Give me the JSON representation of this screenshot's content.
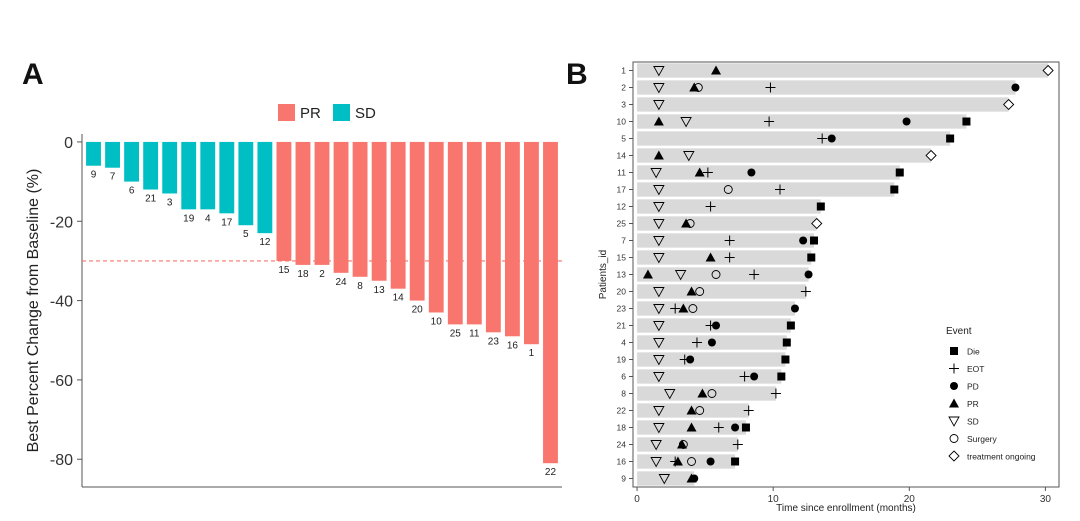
{
  "panels": {
    "a": "A",
    "b": "B"
  },
  "chart_data": [
    {
      "type": "bar",
      "title": "",
      "xlabel": "",
      "ylabel": "Best Percent Change from Baseline (%)",
      "ylim": [
        -87,
        2
      ],
      "yticks": [
        0,
        -20,
        -40,
        -60,
        -80
      ],
      "ytick_labels": [
        "0",
        "-20",
        "-40",
        "-60",
        "-80"
      ],
      "reference_line": -30,
      "legend": [
        {
          "label": "PR",
          "color": "#F8766D"
        },
        {
          "label": "SD",
          "color": "#00BFC4"
        }
      ],
      "colors": {
        "PR": "#F8766D",
        "SD": "#00BFC4"
      },
      "bars": [
        {
          "patient": "9",
          "value": -6,
          "response": "SD"
        },
        {
          "patient": "7",
          "value": -6.5,
          "response": "SD"
        },
        {
          "patient": "6",
          "value": -10,
          "response": "SD"
        },
        {
          "patient": "21",
          "value": -12,
          "response": "SD"
        },
        {
          "patient": "3",
          "value": -13,
          "response": "SD"
        },
        {
          "patient": "19",
          "value": -17,
          "response": "SD"
        },
        {
          "patient": "4",
          "value": -17,
          "response": "SD"
        },
        {
          "patient": "17",
          "value": -18,
          "response": "SD"
        },
        {
          "patient": "5",
          "value": -21,
          "response": "SD"
        },
        {
          "patient": "12",
          "value": -23,
          "response": "SD"
        },
        {
          "patient": "15",
          "value": -30,
          "response": "PR"
        },
        {
          "patient": "18",
          "value": -31,
          "response": "PR"
        },
        {
          "patient": "2",
          "value": -31,
          "response": "PR"
        },
        {
          "patient": "24",
          "value": -33,
          "response": "PR"
        },
        {
          "patient": "8",
          "value": -34,
          "response": "PR"
        },
        {
          "patient": "13",
          "value": -35,
          "response": "PR"
        },
        {
          "patient": "14",
          "value": -37,
          "response": "PR"
        },
        {
          "patient": "20",
          "value": -40,
          "response": "PR"
        },
        {
          "patient": "10",
          "value": -43,
          "response": "PR"
        },
        {
          "patient": "25",
          "value": -46,
          "response": "PR"
        },
        {
          "patient": "11",
          "value": -46,
          "response": "PR"
        },
        {
          "patient": "23",
          "value": -48,
          "response": "PR"
        },
        {
          "patient": "16",
          "value": -49,
          "response": "PR"
        },
        {
          "patient": "1",
          "value": -51,
          "response": "PR"
        },
        {
          "patient": "22",
          "value": -81,
          "response": "PR"
        }
      ]
    },
    {
      "type": "swimmer",
      "title": "",
      "xlabel": "Time since enrollment (months)",
      "ylabel": "Patients_id",
      "xlim": [
        -0.3,
        31
      ],
      "xticks": [
        0,
        10,
        20,
        30
      ],
      "xtick_labels": [
        "0",
        "10",
        "20",
        "30"
      ],
      "legend_title": "Event",
      "legend": [
        {
          "label": "Die",
          "marker": "square"
        },
        {
          "label": "EOT",
          "marker": "plus"
        },
        {
          "label": "PD",
          "marker": "circle"
        },
        {
          "label": "PR",
          "marker": "triangle"
        },
        {
          "label": "SD",
          "marker": "triangle-down"
        },
        {
          "label": "Surgery",
          "marker": "circle-open"
        },
        {
          "label": "treatment ongoing",
          "marker": "diamond-open"
        }
      ],
      "rows": [
        {
          "id": "1",
          "duration": 30.2,
          "events": [
            {
              "t": 1.6,
              "e": "SD"
            },
            {
              "t": 5.8,
              "e": "PR"
            },
            {
              "t": 30.2,
              "e": "treatment ongoing"
            }
          ]
        },
        {
          "id": "2",
          "duration": 27.8,
          "events": [
            {
              "t": 1.6,
              "e": "SD"
            },
            {
              "t": 4.2,
              "e": "PR"
            },
            {
              "t": 4.5,
              "e": "Surgery"
            },
            {
              "t": 9.8,
              "e": "EOT"
            },
            {
              "t": 27.8,
              "e": "PD"
            }
          ]
        },
        {
          "id": "3",
          "duration": 27.3,
          "events": [
            {
              "t": 1.6,
              "e": "SD"
            },
            {
              "t": 27.3,
              "e": "treatment ongoing"
            }
          ]
        },
        {
          "id": "10",
          "duration": 24.2,
          "events": [
            {
              "t": 1.6,
              "e": "PR"
            },
            {
              "t": 3.6,
              "e": "SD"
            },
            {
              "t": 9.7,
              "e": "EOT"
            },
            {
              "t": 19.8,
              "e": "PD"
            },
            {
              "t": 24.2,
              "e": "Die"
            }
          ]
        },
        {
          "id": "5",
          "duration": 23.0,
          "events": [
            {
              "t": 13.6,
              "e": "EOT"
            },
            {
              "t": 14.3,
              "e": "PD"
            },
            {
              "t": 23.0,
              "e": "Die"
            }
          ]
        },
        {
          "id": "14",
          "duration": 21.6,
          "events": [
            {
              "t": 1.6,
              "e": "PR"
            },
            {
              "t": 3.8,
              "e": "SD"
            },
            {
              "t": 21.6,
              "e": "treatment ongoing"
            }
          ]
        },
        {
          "id": "11",
          "duration": 19.3,
          "events": [
            {
              "t": 1.4,
              "e": "SD"
            },
            {
              "t": 4.6,
              "e": "PR"
            },
            {
              "t": 5.2,
              "e": "EOT"
            },
            {
              "t": 8.4,
              "e": "PD"
            },
            {
              "t": 19.3,
              "e": "Die"
            }
          ]
        },
        {
          "id": "17",
          "duration": 18.9,
          "events": [
            {
              "t": 1.6,
              "e": "SD"
            },
            {
              "t": 6.7,
              "e": "Surgery"
            },
            {
              "t": 10.5,
              "e": "EOT"
            },
            {
              "t": 18.9,
              "e": "Die"
            }
          ]
        },
        {
          "id": "12",
          "duration": 13.5,
          "events": [
            {
              "t": 1.6,
              "e": "SD"
            },
            {
              "t": 5.4,
              "e": "EOT"
            },
            {
              "t": 13.5,
              "e": "Die"
            }
          ]
        },
        {
          "id": "25",
          "duration": 13.2,
          "events": [
            {
              "t": 1.6,
              "e": "SD"
            },
            {
              "t": 3.6,
              "e": "PR"
            },
            {
              "t": 3.9,
              "e": "Surgery"
            },
            {
              "t": 13.2,
              "e": "treatment ongoing"
            }
          ]
        },
        {
          "id": "7",
          "duration": 13.0,
          "events": [
            {
              "t": 1.6,
              "e": "SD"
            },
            {
              "t": 6.8,
              "e": "EOT"
            },
            {
              "t": 12.2,
              "e": "PD"
            },
            {
              "t": 13.0,
              "e": "Die"
            }
          ]
        },
        {
          "id": "15",
          "duration": 12.8,
          "events": [
            {
              "t": 1.6,
              "e": "SD"
            },
            {
              "t": 5.4,
              "e": "PR"
            },
            {
              "t": 6.8,
              "e": "EOT"
            },
            {
              "t": 12.8,
              "e": "Die"
            }
          ]
        },
        {
          "id": "13",
          "duration": 12.6,
          "events": [
            {
              "t": 0.8,
              "e": "PR"
            },
            {
              "t": 3.2,
              "e": "SD"
            },
            {
              "t": 5.8,
              "e": "Surgery"
            },
            {
              "t": 8.6,
              "e": "EOT"
            },
            {
              "t": 12.6,
              "e": "PD"
            }
          ]
        },
        {
          "id": "20",
          "duration": 12.4,
          "events": [
            {
              "t": 1.6,
              "e": "SD"
            },
            {
              "t": 4.0,
              "e": "PR"
            },
            {
              "t": 4.6,
              "e": "Surgery"
            },
            {
              "t": 12.4,
              "e": "EOT"
            }
          ]
        },
        {
          "id": "23",
          "duration": 11.6,
          "events": [
            {
              "t": 1.6,
              "e": "SD"
            },
            {
              "t": 2.8,
              "e": "EOT"
            },
            {
              "t": 3.4,
              "e": "PR"
            },
            {
              "t": 4.1,
              "e": "Surgery"
            },
            {
              "t": 11.6,
              "e": "PD"
            }
          ]
        },
        {
          "id": "21",
          "duration": 11.3,
          "events": [
            {
              "t": 1.6,
              "e": "SD"
            },
            {
              "t": 5.4,
              "e": "EOT"
            },
            {
              "t": 5.8,
              "e": "PD"
            },
            {
              "t": 11.3,
              "e": "Die"
            }
          ]
        },
        {
          "id": "4",
          "duration": 11.0,
          "events": [
            {
              "t": 1.6,
              "e": "SD"
            },
            {
              "t": 4.4,
              "e": "EOT"
            },
            {
              "t": 5.5,
              "e": "PD"
            },
            {
              "t": 11.0,
              "e": "Die"
            }
          ]
        },
        {
          "id": "19",
          "duration": 10.9,
          "events": [
            {
              "t": 1.6,
              "e": "SD"
            },
            {
              "t": 3.5,
              "e": "EOT"
            },
            {
              "t": 3.9,
              "e": "PD"
            },
            {
              "t": 10.9,
              "e": "Die"
            }
          ]
        },
        {
          "id": "6",
          "duration": 10.6,
          "events": [
            {
              "t": 1.6,
              "e": "SD"
            },
            {
              "t": 7.9,
              "e": "EOT"
            },
            {
              "t": 8.6,
              "e": "PD"
            },
            {
              "t": 10.6,
              "e": "Die"
            }
          ]
        },
        {
          "id": "8",
          "duration": 10.2,
          "events": [
            {
              "t": 2.4,
              "e": "SD"
            },
            {
              "t": 4.8,
              "e": "PR"
            },
            {
              "t": 5.5,
              "e": "Surgery"
            },
            {
              "t": 10.2,
              "e": "EOT"
            }
          ]
        },
        {
          "id": "22",
          "duration": 8.2,
          "events": [
            {
              "t": 1.6,
              "e": "SD"
            },
            {
              "t": 4.0,
              "e": "PR"
            },
            {
              "t": 4.6,
              "e": "Surgery"
            },
            {
              "t": 8.2,
              "e": "EOT"
            }
          ]
        },
        {
          "id": "18",
          "duration": 8.0,
          "events": [
            {
              "t": 1.6,
              "e": "SD"
            },
            {
              "t": 4.0,
              "e": "PR"
            },
            {
              "t": 6.0,
              "e": "EOT"
            },
            {
              "t": 7.2,
              "e": "PD"
            },
            {
              "t": 8.0,
              "e": "Die"
            }
          ]
        },
        {
          "id": "24",
          "duration": 7.4,
          "events": [
            {
              "t": 1.4,
              "e": "SD"
            },
            {
              "t": 3.3,
              "e": "PR"
            },
            {
              "t": 3.4,
              "e": "Surgery"
            },
            {
              "t": 7.4,
              "e": "EOT"
            }
          ]
        },
        {
          "id": "16",
          "duration": 7.2,
          "events": [
            {
              "t": 1.4,
              "e": "SD"
            },
            {
              "t": 2.8,
              "e": "EOT"
            },
            {
              "t": 3.0,
              "e": "PR"
            },
            {
              "t": 4.0,
              "e": "Surgery"
            },
            {
              "t": 5.4,
              "e": "PD"
            },
            {
              "t": 7.2,
              "e": "Die"
            }
          ]
        },
        {
          "id": "9",
          "duration": 4.2,
          "events": [
            {
              "t": 2.0,
              "e": "SD"
            },
            {
              "t": 4.0,
              "e": "PR"
            },
            {
              "t": 4.2,
              "e": "PD"
            }
          ]
        }
      ]
    }
  ]
}
